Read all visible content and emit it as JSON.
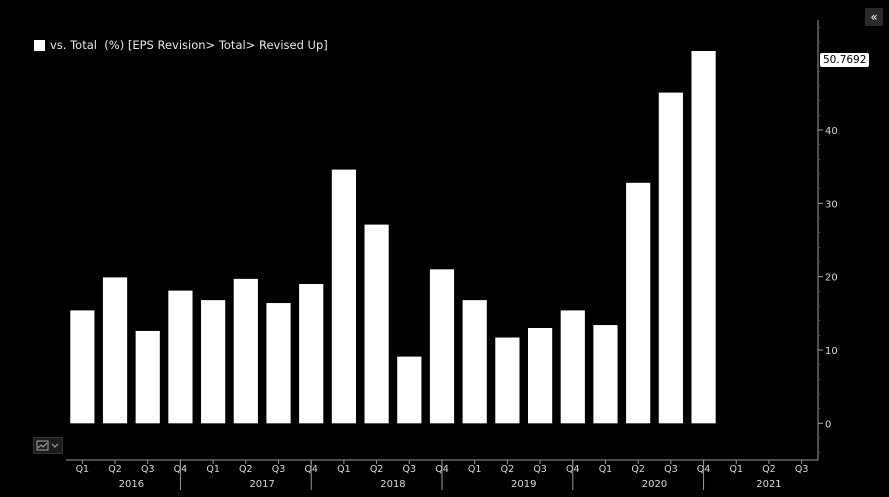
{
  "ui": {
    "collapse_label": "«",
    "last_value_label": "50.7692"
  },
  "colors": {
    "background": "#000000",
    "bar": "#ffffff",
    "axis": "#9a9a9a",
    "text": "#d8d8d8"
  },
  "chart_data": {
    "type": "bar",
    "title": "",
    "legend": [
      "vs. Total  (%) [EPS Revision> Total> Revised Up]"
    ],
    "legend_position": "top-left",
    "grid": false,
    "x": [
      "2016 Q1",
      "2016 Q2",
      "2016 Q3",
      "2016 Q4",
      "2017 Q1",
      "2017 Q2",
      "2017 Q3",
      "2017 Q4",
      "2018 Q1",
      "2018 Q2",
      "2018 Q3",
      "2018 Q4",
      "2019 Q1",
      "2019 Q2",
      "2019 Q3",
      "2019 Q4",
      "2020 Q1",
      "2020 Q2",
      "2020 Q3",
      "2020 Q4",
      "2021 Q1",
      "2021 Q2",
      "2021 Q3"
    ],
    "quarter_tick_labels": [
      "Q1",
      "Q2",
      "Q3",
      "Q4",
      "Q1",
      "Q2",
      "Q3",
      "Q4",
      "Q1",
      "Q2",
      "Q3",
      "Q4",
      "Q1",
      "Q2",
      "Q3",
      "Q4",
      "Q1",
      "Q2",
      "Q3",
      "Q4",
      "Q1",
      "Q2",
      "Q3"
    ],
    "year_labels": [
      "2016",
      "2017",
      "2018",
      "2019",
      "2020",
      "2021"
    ],
    "series": [
      {
        "name": "vs. Total  (%) [EPS Revision> Total> Revised Up]",
        "values": [
          15.4,
          19.9,
          12.6,
          18.1,
          16.8,
          19.7,
          16.4,
          19.0,
          34.6,
          27.1,
          9.1,
          21.0,
          16.8,
          11.7,
          13.0,
          15.4,
          13.4,
          32.8,
          45.1,
          50.7692,
          null,
          null,
          null
        ]
      }
    ],
    "y_ticks": [
      0,
      10,
      20,
      30,
      40
    ],
    "ylim": [
      -5,
      55
    ],
    "y_axis_side": "right",
    "last_value": 50.7692
  }
}
